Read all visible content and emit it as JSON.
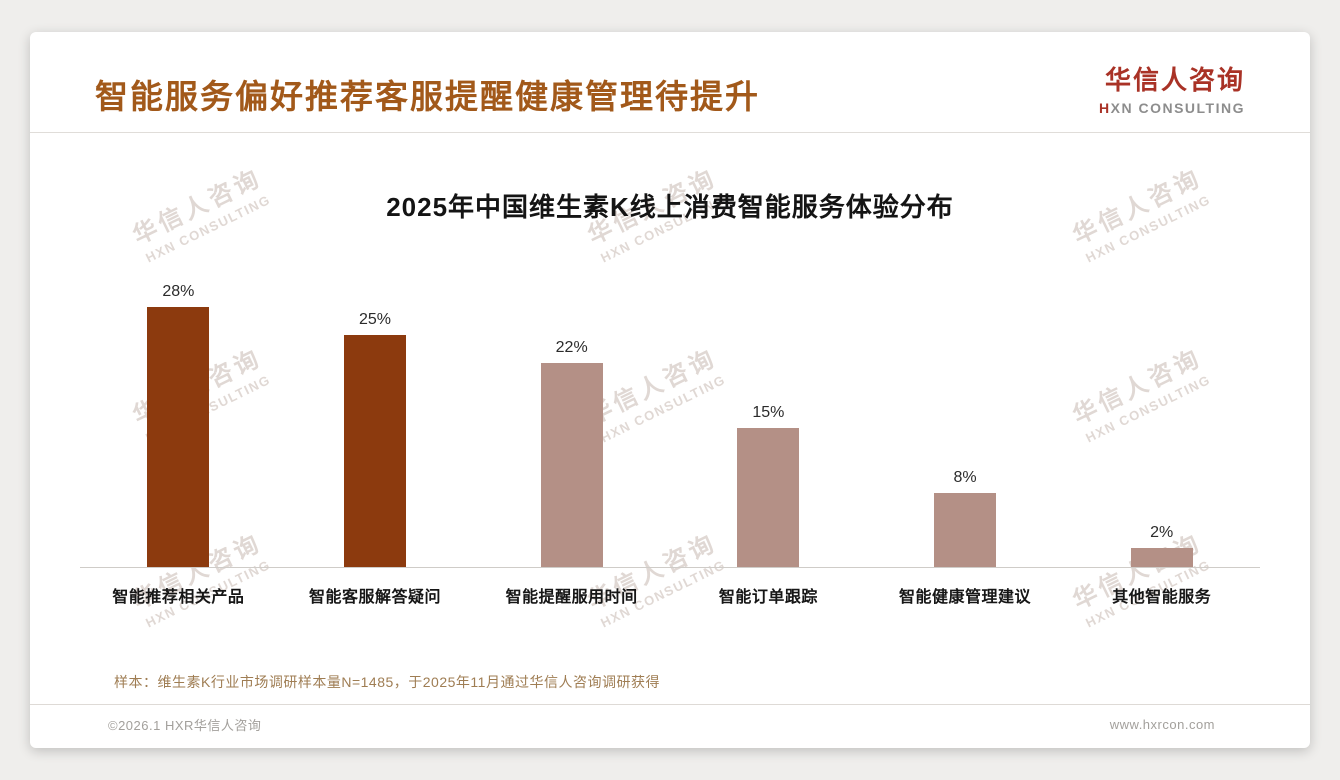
{
  "header": {
    "title": "智能服务偏好推荐客服提醒健康管理待提升",
    "logo_cn": "华信人咨询",
    "logo_en": "HXN CONSULTING"
  },
  "chart_data": {
    "type": "bar",
    "title": "2025年中国维生素K线上消费智能服务体验分布",
    "categories": [
      "智能推荐相关产品",
      "智能客服解答疑问",
      "智能提醒服用时间",
      "智能订单跟踪",
      "智能健康管理建议",
      "其他智能服务"
    ],
    "values": [
      28,
      25,
      22,
      15,
      8,
      2
    ],
    "unit": "%",
    "value_labels": [
      "28%",
      "25%",
      "22%",
      "15%",
      "8%",
      "2%"
    ],
    "bar_colors": [
      "#8c3a0e",
      "#8c3a0e",
      "#b49086",
      "#b49086",
      "#b49086",
      "#b49086"
    ],
    "ylim": [
      0,
      30
    ],
    "grid": false,
    "legend": "none",
    "xlabel": "",
    "ylabel": ""
  },
  "watermark": {
    "cn": "华信人咨询",
    "en": "HXN CONSULTING"
  },
  "footnote": "样本：维生素K行业市场调研样本量N=1485，于2025年11月通过华信人咨询调研获得",
  "footer": {
    "copyright": "©2026.1 HXR华信人咨询",
    "website": "www.hxrcon.com"
  },
  "colors": {
    "page_title": "#a2591a",
    "logo_red": "#a93226",
    "footnote": "#9f7d53",
    "watermark": "#c8bab2",
    "bar_dark": "#8c3a0e",
    "bar_light": "#b49086"
  }
}
